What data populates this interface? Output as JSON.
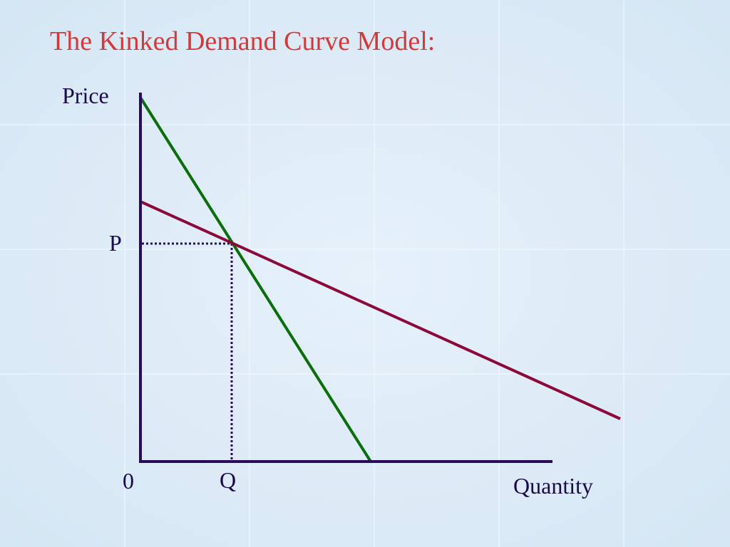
{
  "title": "The Kinked Demand Curve Model:",
  "axes": {
    "y_label": "Price",
    "x_label": "Quantity",
    "origin": "0"
  },
  "points": {
    "price": "P",
    "quantity": "Q"
  }
}
